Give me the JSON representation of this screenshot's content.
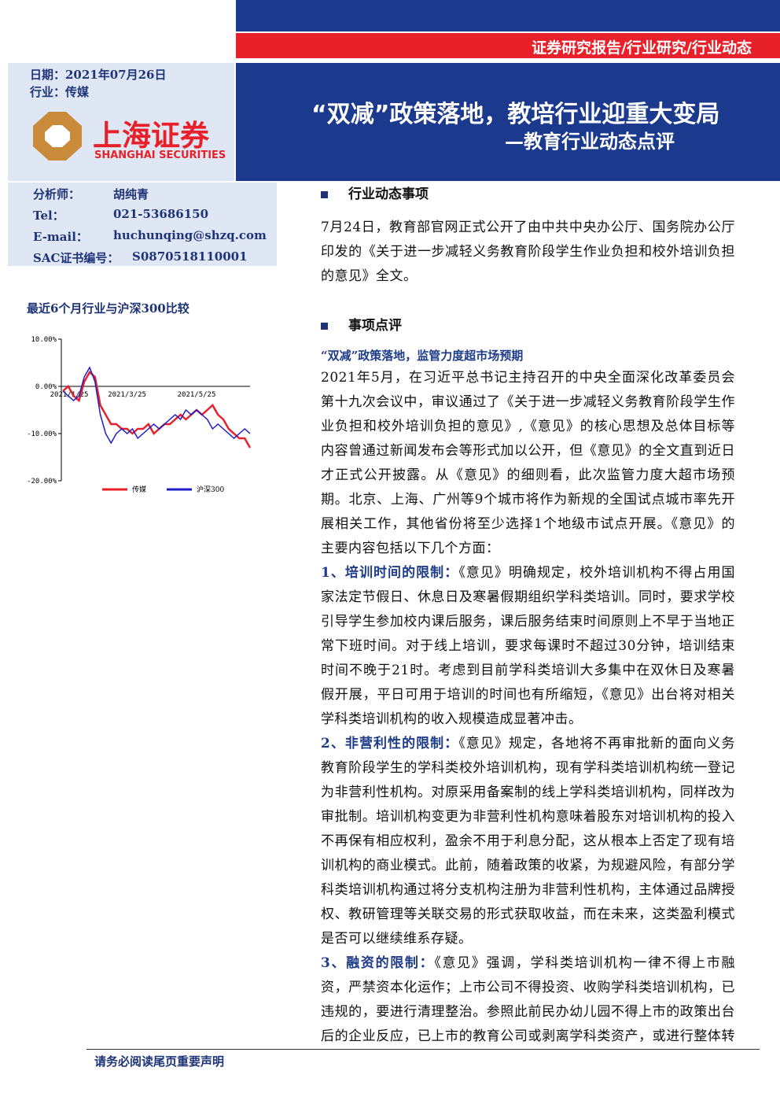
{
  "header": {
    "report_type": "证券研究报告/行业研究/行业动态",
    "date": "日期：2021年07月26日",
    "industry": "行业：传媒",
    "title": "“双减”政策落地，教培行业迎重大变局",
    "subtitle": "—教育行业动态点评",
    "company_cn": "上海证券",
    "company_en": "SHANGHAI SECURITIES"
  },
  "analyst": {
    "rows": [
      [
        "分析师：",
        "胡纯青"
      ],
      [
        "Tel：",
        "021-53686150"
      ],
      [
        "E-mail：",
        "huchunqing@shzq.com"
      ],
      [
        "SAC证书编号：",
        "S0870518110001"
      ]
    ]
  },
  "chart_data": {
    "type": "line",
    "title": "最近6个月行业与沪深300比较",
    "categories": [
      "2021/1/25",
      null,
      null,
      null,
      null,
      null,
      null,
      null,
      null,
      null,
      null,
      null,
      "2021/3/25",
      null,
      null,
      null,
      null,
      null,
      null,
      null,
      null,
      null,
      null,
      null,
      null,
      "2021/5/25",
      null,
      null,
      null,
      null,
      null,
      null,
      null,
      null,
      null,
      null
    ],
    "series": [
      {
        "name": "传媒",
        "color": "#e8202a",
        "values": [
          -1,
          0,
          -2,
          -3,
          1,
          3,
          2,
          -4,
          -6,
          -8,
          -8,
          -9,
          -9,
          -10,
          -9,
          -9,
          -8,
          -10,
          -9,
          -8,
          -8,
          -7,
          -6,
          -7,
          -6,
          -5,
          -6,
          -5,
          -4,
          -6,
          -7,
          -9,
          -10,
          -11,
          -11,
          -13
        ]
      },
      {
        "name": "沪深300",
        "color": "#1c1cc8",
        "values": [
          -1,
          -2,
          -3,
          -2,
          2,
          4,
          1,
          -6,
          -10,
          -12,
          -10,
          -9,
          -10,
          -9,
          -11,
          -10,
          -9,
          -8,
          -9,
          -8,
          -7,
          -6,
          -7,
          -5,
          -6,
          -5,
          -6,
          -7,
          -9,
          -8,
          -9,
          -10,
          -11,
          -10,
          -9,
          -10
        ]
      }
    ],
    "ylim": [
      -20,
      10
    ],
    "yticks": [
      {
        "value": 10,
        "label": "10.00%"
      },
      {
        "value": 0,
        "label": "0.00%"
      },
      {
        "value": -10,
        "label": "-10.00%"
      },
      {
        "value": -20,
        "label": "-20.00%"
      }
    ],
    "legend": "bottom"
  },
  "sections": [
    {
      "heading": "行业动态事项",
      "paragraphs": [
        "7月24日，教育部官网正式公开了由中共中央办公厅、国务院办公厅印发的《关于进一步减轻义务教育阶段学生作业负担和校外培训负担的意见》全文。"
      ]
    },
    {
      "heading": "事项点评",
      "subheading": "“双减”政策落地，监管力度超市场预期",
      "paragraphs": [
        "2021年5月，在习近平总书记主持召开的中央全面深化改革委员会第十九次会议中，审议通过了《关于进一步减轻义务教育阶段学生作业负担和校外培训负担的意见》,《意见》的核心思想及总体目标等内容曾通过新闻发布会等形式加以公开，但《意见》的全文直到近日才正式公开披露。从《意见》的细则看，此次监管力度大超市场预期。北京、上海、广州等9个城市将作为新规的全国试点城市率先开展相关工作，其他省份将至少选择1个地级市试点开展。《意见》的主要内容包括以下几个方面："
      ],
      "points": [
        {
          "lead": "1、培训时间的限制：",
          "text": "《意见》明确规定，校外培训机构不得占用国家法定节假日、休息日及寒暑假期组织学科类培训。同时，要求学校引导学生参加校内课后服务，课后服务结束时间原则上不早于当地正常下班时间。对于线上培训，要求每课时不超过30分钟，培训结束时间不晚于21时。考虑到目前学科类培训大多集中在双休日及寒暑假开展，平日可用于培训的时间也有所缩短，《意见》出台将对相关学科类培训机构的收入规模造成显著冲击。"
        },
        {
          "lead": "2、非营利性的限制：",
          "text": "《意见》规定，各地将不再审批新的面向义务教育阶段学生的学科类校外培训机构，现有学科类培训机构统一登记为非营利性机构。对原采用备案制的线上学科类培训机构，同样改为审批制。培训机构变更为非营利性机构意味着股东对培训机构的投入不再保有相应权利，盈余不用于利息分配，这从根本上否定了现有培训机构的商业模式。此前，随着政策的收紧，为规避风险，有部分学科类培训机构通过将分支机构注册为非营利性机构，主体通过品牌授权、教研管理等关联交易的形式获取收益，而在未来，这类盈利模式是否可以继续维系存疑。"
        },
        {
          "lead": "3、融资的限制：",
          "text": "《意见》强调，学科类培训机构一律不得上市融资，严禁资本化运作；上市公司不得投资、收购学科类培训机构，已违规的，要进行清理整治。参照此前民办幼儿园不得上市的政策出台后的企业反应，已上市的教育公司或剥离学科类资产，或进行整体转型。由于无法通过上市的方式退出，学科类教培机构在一级市场"
        }
      ]
    }
  ],
  "footer": "请务必阅读尾页重要声明"
}
